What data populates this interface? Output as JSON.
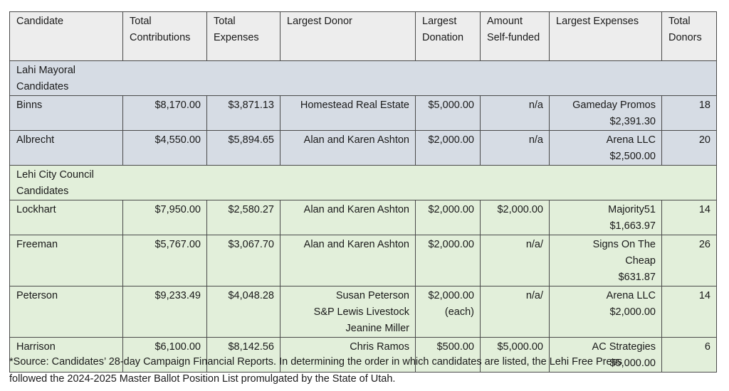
{
  "columns": [
    "Candidate",
    "Total Contributions",
    "Total Expenses",
    "Largest Donor",
    "Largest Donation",
    "Amount Self-funded",
    "Largest Expenses",
    "Total Donors"
  ],
  "sections": [
    {
      "title": "Lahi Mayoral Candidates",
      "color": "#d6dce4",
      "rows": [
        {
          "candidate": "Binns",
          "contributions": "$8,170.00",
          "expenses": "$3,871.13",
          "donor": [
            "Homestead Real Estate"
          ],
          "donation": [
            "$5,000.00"
          ],
          "self_funded": "n/a",
          "largest_expenses": [
            "Gameday Promos",
            "$2,391.30"
          ],
          "donors": "18"
        },
        {
          "candidate": "Albrecht",
          "contributions": "$4,550.00",
          "expenses": "$5,894.65",
          "donor": [
            "Alan and Karen Ashton"
          ],
          "donation": [
            "$2,000.00"
          ],
          "self_funded": "n/a",
          "largest_expenses": [
            "Arena LLC",
            "$2,500.00"
          ],
          "donors": "20"
        }
      ]
    },
    {
      "title": "Lehi City Council Candidates",
      "color": "#e2efda",
      "rows": [
        {
          "candidate": "Lockhart",
          "contributions": "$7,950.00",
          "expenses": "$2,580.27",
          "donor": [
            "Alan and Karen Ashton"
          ],
          "donation": [
            "$2,000.00"
          ],
          "self_funded": "$2,000.00",
          "largest_expenses": [
            "Majority51",
            "$1,663.97"
          ],
          "donors": "14"
        },
        {
          "candidate": "Freeman",
          "contributions": "$5,767.00",
          "expenses": "$3,067.70",
          "donor": [
            "Alan and Karen Ashton"
          ],
          "donation": [
            "$2,000.00"
          ],
          "self_funded": "n/a/",
          "largest_expenses": [
            "Signs On The",
            "Cheap",
            "$631.87"
          ],
          "donors": "26"
        },
        {
          "candidate": "Peterson",
          "contributions": "$9,233.49",
          "expenses": "$4,048.28",
          "donor": [
            "Susan Peterson",
            "S&P Lewis Livestock",
            "Jeanine Miller"
          ],
          "donation": [
            "$2,000.00",
            "(each)"
          ],
          "self_funded": "n/a/",
          "largest_expenses": [
            "Arena LLC",
            "$2,000.00"
          ],
          "donors": "14"
        },
        {
          "candidate": "Harrison",
          "contributions": "$6,100.00",
          "expenses": "$8,142.56",
          "donor": [
            "Chris Ramos"
          ],
          "donation": [
            "$500.00"
          ],
          "self_funded": "$5,000.00",
          "largest_expenses": [
            "AC Strategies",
            "$5,000.00"
          ],
          "donors": "6"
        }
      ]
    }
  ],
  "header_color": "#ededed",
  "footnote": [
    "*Source: Candidates’ 28-day Campaign Financial Reports. In determining the order in which candidates are listed, the Lehi Free Press",
    "followed the 2024-2025 Master Ballot Position List promulgated by the State of Utah."
  ]
}
